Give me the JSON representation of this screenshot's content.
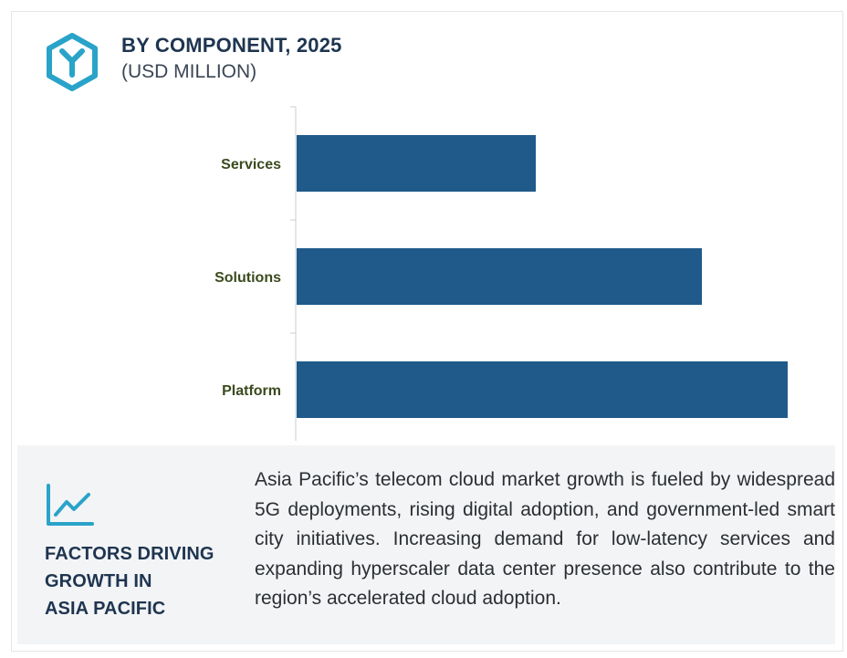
{
  "header": {
    "title": "BY COMPONENT, 2025",
    "subtitle": "(USD MILLION)",
    "logo_icon": "hexagon-y-logo-icon"
  },
  "colors": {
    "bar": "#1f5a8a",
    "accent": "#2aa3c9",
    "title": "#1e3550",
    "category_label": "#3b4a1e"
  },
  "chart_data": {
    "type": "bar",
    "orientation": "horizontal",
    "categories": [
      "Services",
      "Solutions",
      "Platform"
    ],
    "values": [
      262,
      444,
      538
    ],
    "title": "BY COMPONENT, 2025",
    "subtitle": "(USD MILLION)",
    "xlabel": "",
    "ylabel": "",
    "xlim": [
      0,
      560
    ],
    "grid": false,
    "legend": "none"
  },
  "factors": {
    "icon": "line-chart-trend-icon",
    "title_lines": [
      "FACTORS DRIVING",
      "GROWTH IN",
      "ASIA PACIFIC"
    ],
    "text": "Asia Pacific’s telecom cloud market growth is fueled by widespread 5G deployments, rising digital adoption, and government-led smart city initiatives. Increasing demand for low-latency services and expanding hyperscaler data center presence also contribute to the region’s accelerated cloud adoption."
  }
}
